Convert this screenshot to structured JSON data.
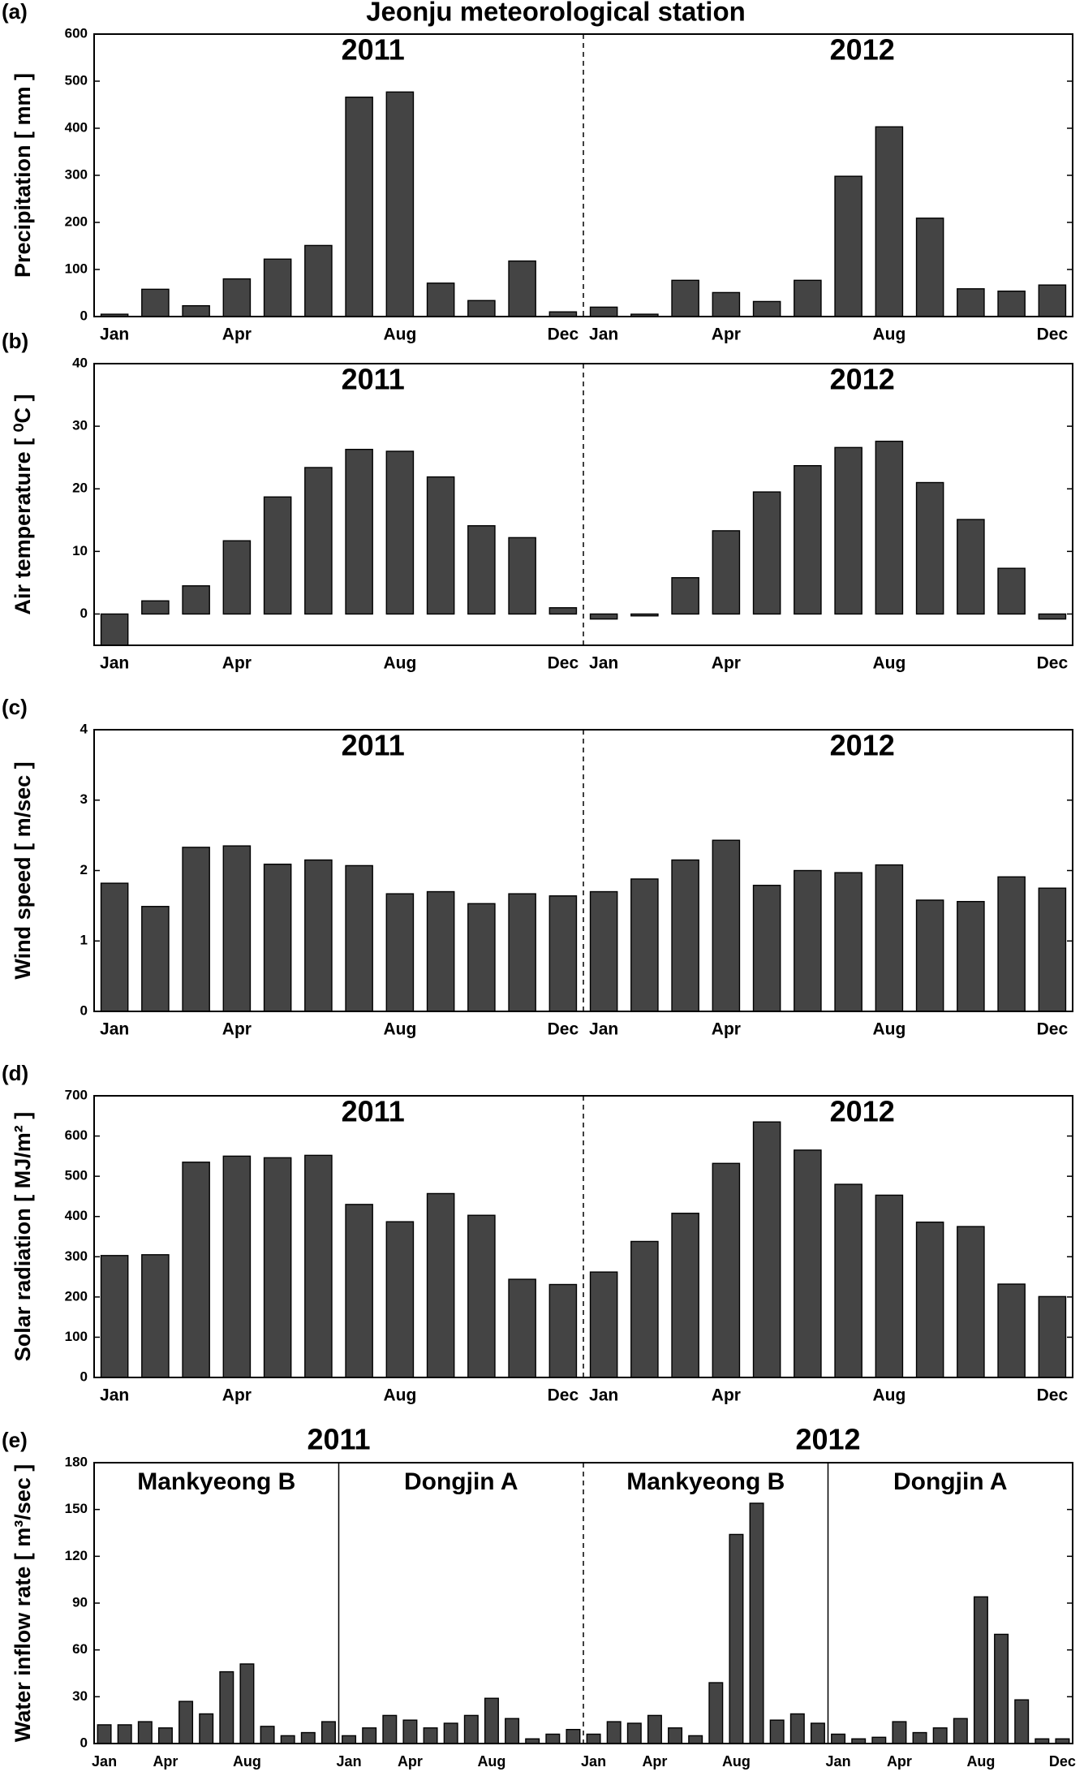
{
  "title": "Jeonju meteorological station",
  "chart_data": [
    {
      "type": "bar",
      "panel": "(a)",
      "ylabel": "Precipitation [ mm ]",
      "annotations": [
        "2011",
        "2012"
      ],
      "categories": [
        "Jan",
        null,
        null,
        "Apr",
        null,
        null,
        null,
        "Aug",
        null,
        null,
        null,
        "Dec",
        "Jan",
        null,
        null,
        "Apr",
        null,
        null,
        null,
        "Aug",
        null,
        null,
        null,
        "Dec"
      ],
      "values": [
        5,
        58,
        23,
        80,
        122,
        151,
        466,
        477,
        71,
        34,
        118,
        10,
        20,
        5,
        77,
        51,
        32,
        77,
        298,
        403,
        209,
        59,
        54,
        67
      ],
      "color": "#444444",
      "ylim": [
        0,
        600
      ],
      "yticks": [
        0,
        100,
        200,
        300,
        400,
        500,
        600
      ]
    },
    {
      "type": "bar",
      "panel": "(b)",
      "ylabel": "Air temperature [ ⁰C ]",
      "annotations": [
        "2011",
        "2012"
      ],
      "categories": [
        "Jan",
        null,
        null,
        "Apr",
        null,
        null,
        null,
        "Aug",
        null,
        null,
        null,
        "Dec",
        "Jan",
        null,
        null,
        "Apr",
        null,
        null,
        null,
        "Aug",
        null,
        null,
        null,
        "Dec"
      ],
      "values": [
        -5,
        2.1,
        4.5,
        11.7,
        18.7,
        23.4,
        26.3,
        26.0,
        21.9,
        14.1,
        12.2,
        1.0,
        -0.8,
        -0.3,
        5.8,
        13.3,
        19.5,
        23.7,
        26.6,
        27.6,
        21.0,
        15.1,
        7.3,
        -0.8
      ],
      "color": "#444444",
      "ylim": [
        -5,
        40
      ],
      "yticks": [
        0,
        10,
        20,
        30,
        40
      ]
    },
    {
      "type": "bar",
      "panel": "(c)",
      "ylabel": "Wind speed [ m/sec ]",
      "annotations": [
        "2011",
        "2012"
      ],
      "categories": [
        "Jan",
        null,
        null,
        "Apr",
        null,
        null,
        null,
        "Aug",
        null,
        null,
        null,
        "Dec",
        "Jan",
        null,
        null,
        "Apr",
        null,
        null,
        null,
        "Aug",
        null,
        null,
        null,
        "Dec"
      ],
      "values": [
        1.82,
        1.49,
        2.33,
        2.35,
        2.09,
        2.15,
        2.07,
        1.67,
        1.7,
        1.53,
        1.67,
        1.64,
        1.7,
        1.88,
        2.15,
        2.43,
        1.79,
        2.0,
        1.97,
        2.08,
        1.58,
        1.56,
        1.91,
        1.75
      ],
      "color": "#444444",
      "ylim": [
        0,
        4
      ],
      "yticks": [
        0,
        1,
        2,
        3,
        4
      ]
    },
    {
      "type": "bar",
      "panel": "(d)",
      "ylabel": "Solar radiation [ MJ/m² ]",
      "annotations": [
        "2011",
        "2012"
      ],
      "categories": [
        "Jan",
        null,
        null,
        "Apr",
        null,
        null,
        null,
        "Aug",
        null,
        null,
        null,
        "Dec",
        "Jan",
        null,
        null,
        "Apr",
        null,
        null,
        null,
        "Aug",
        null,
        null,
        null,
        "Dec"
      ],
      "values": [
        303,
        305,
        535,
        550,
        546,
        552,
        430,
        387,
        457,
        403,
        244,
        231,
        262,
        338,
        408,
        532,
        635,
        565,
        480,
        453,
        386,
        375,
        232,
        201
      ],
      "color": "#444444",
      "ylim": [
        0,
        700
      ],
      "yticks": [
        0,
        100,
        200,
        300,
        400,
        500,
        600,
        700
      ]
    },
    {
      "type": "bar",
      "panel": "(e)",
      "ylabel": "Water inflow rate [ m³/sec ]",
      "annotations": [
        "2011",
        "2012"
      ],
      "groups": [
        "Mankyeong B",
        "Dongjin A",
        "Mankyeong B",
        "Dongjin A"
      ],
      "categories": [
        "Jan",
        null,
        null,
        "Apr",
        null,
        null,
        null,
        "Aug",
        null,
        null,
        null,
        null,
        "Jan",
        null,
        null,
        "Apr",
        null,
        null,
        null,
        "Aug",
        null,
        null,
        null,
        null,
        "Jan",
        null,
        null,
        "Apr",
        null,
        null,
        null,
        "Aug",
        null,
        null,
        null,
        null,
        "Jan",
        null,
        null,
        "Apr",
        null,
        null,
        null,
        "Aug",
        null,
        null,
        null,
        "Dec"
      ],
      "values": [
        12,
        12,
        14,
        10,
        27,
        19,
        46,
        51,
        11,
        5,
        7,
        14,
        5,
        10,
        18,
        15,
        10,
        13,
        18,
        29,
        16,
        3,
        6,
        9,
        6,
        14,
        13,
        18,
        10,
        5,
        39,
        134,
        154,
        15,
        19,
        13,
        6,
        3,
        4,
        14,
        7,
        10,
        16,
        94,
        70,
        28,
        3,
        3
      ],
      "color": "#444444",
      "ylim": [
        0,
        180
      ],
      "yticks": [
        0,
        30,
        60,
        90,
        120,
        150,
        180
      ]
    }
  ]
}
